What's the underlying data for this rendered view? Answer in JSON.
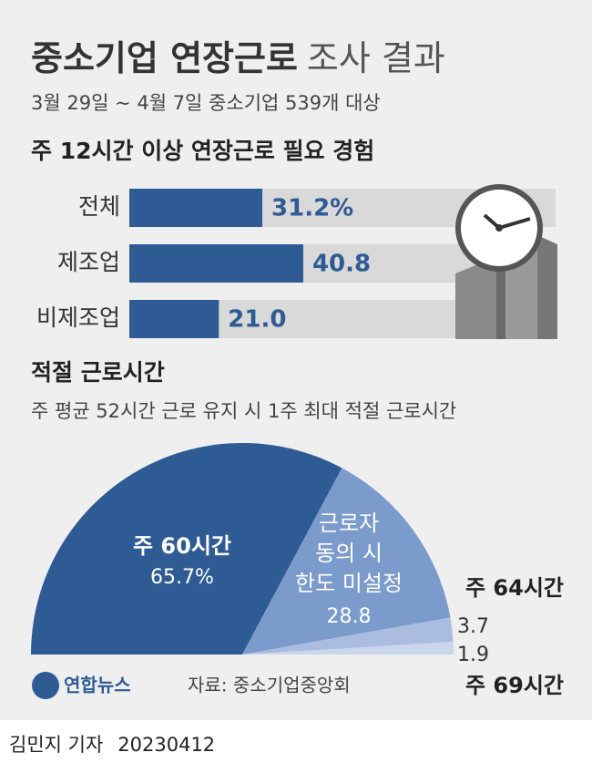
{
  "title": "중소기업 연장근로",
  "title_suffix": "조사 결과",
  "subtitle": "3월 29일 ~ 4월 7일 중소기업 539개 대상",
  "chart_data": [
    {
      "type": "bar",
      "title": "주 12시간 이상 연장근로 필요 경험",
      "categories": [
        "전체",
        "제조업",
        "비제조업"
      ],
      "values": [
        31.2,
        40.8,
        21.0
      ],
      "value_labels": [
        "31.2%",
        "40.8",
        "21.0"
      ],
      "xlim": [
        0,
        100
      ],
      "color": "#2f5b94",
      "background_color": "#d9d9d9"
    },
    {
      "type": "pie",
      "title": "적절 근로시간",
      "subtitle": "주 평균 52시간 근로 유지 시 1주 최대 적절 근로시간",
      "categories": [
        "주 60시간",
        "근로자\n동의 시\n한도 미설정",
        "주 64시간",
        "주 69시간"
      ],
      "values": [
        65.7,
        28.8,
        3.7,
        1.9
      ],
      "value_labels": [
        "65.7%",
        "28.8",
        "3.7",
        "1.9"
      ],
      "colors": [
        "#2f5b94",
        "#7b9bcc",
        "#aabde0",
        "#cad6ec"
      ]
    }
  ],
  "logo": "연합뉴스",
  "source": "자료: 중소기업중앙회",
  "byline": "김민지 기자",
  "date": "20230412"
}
